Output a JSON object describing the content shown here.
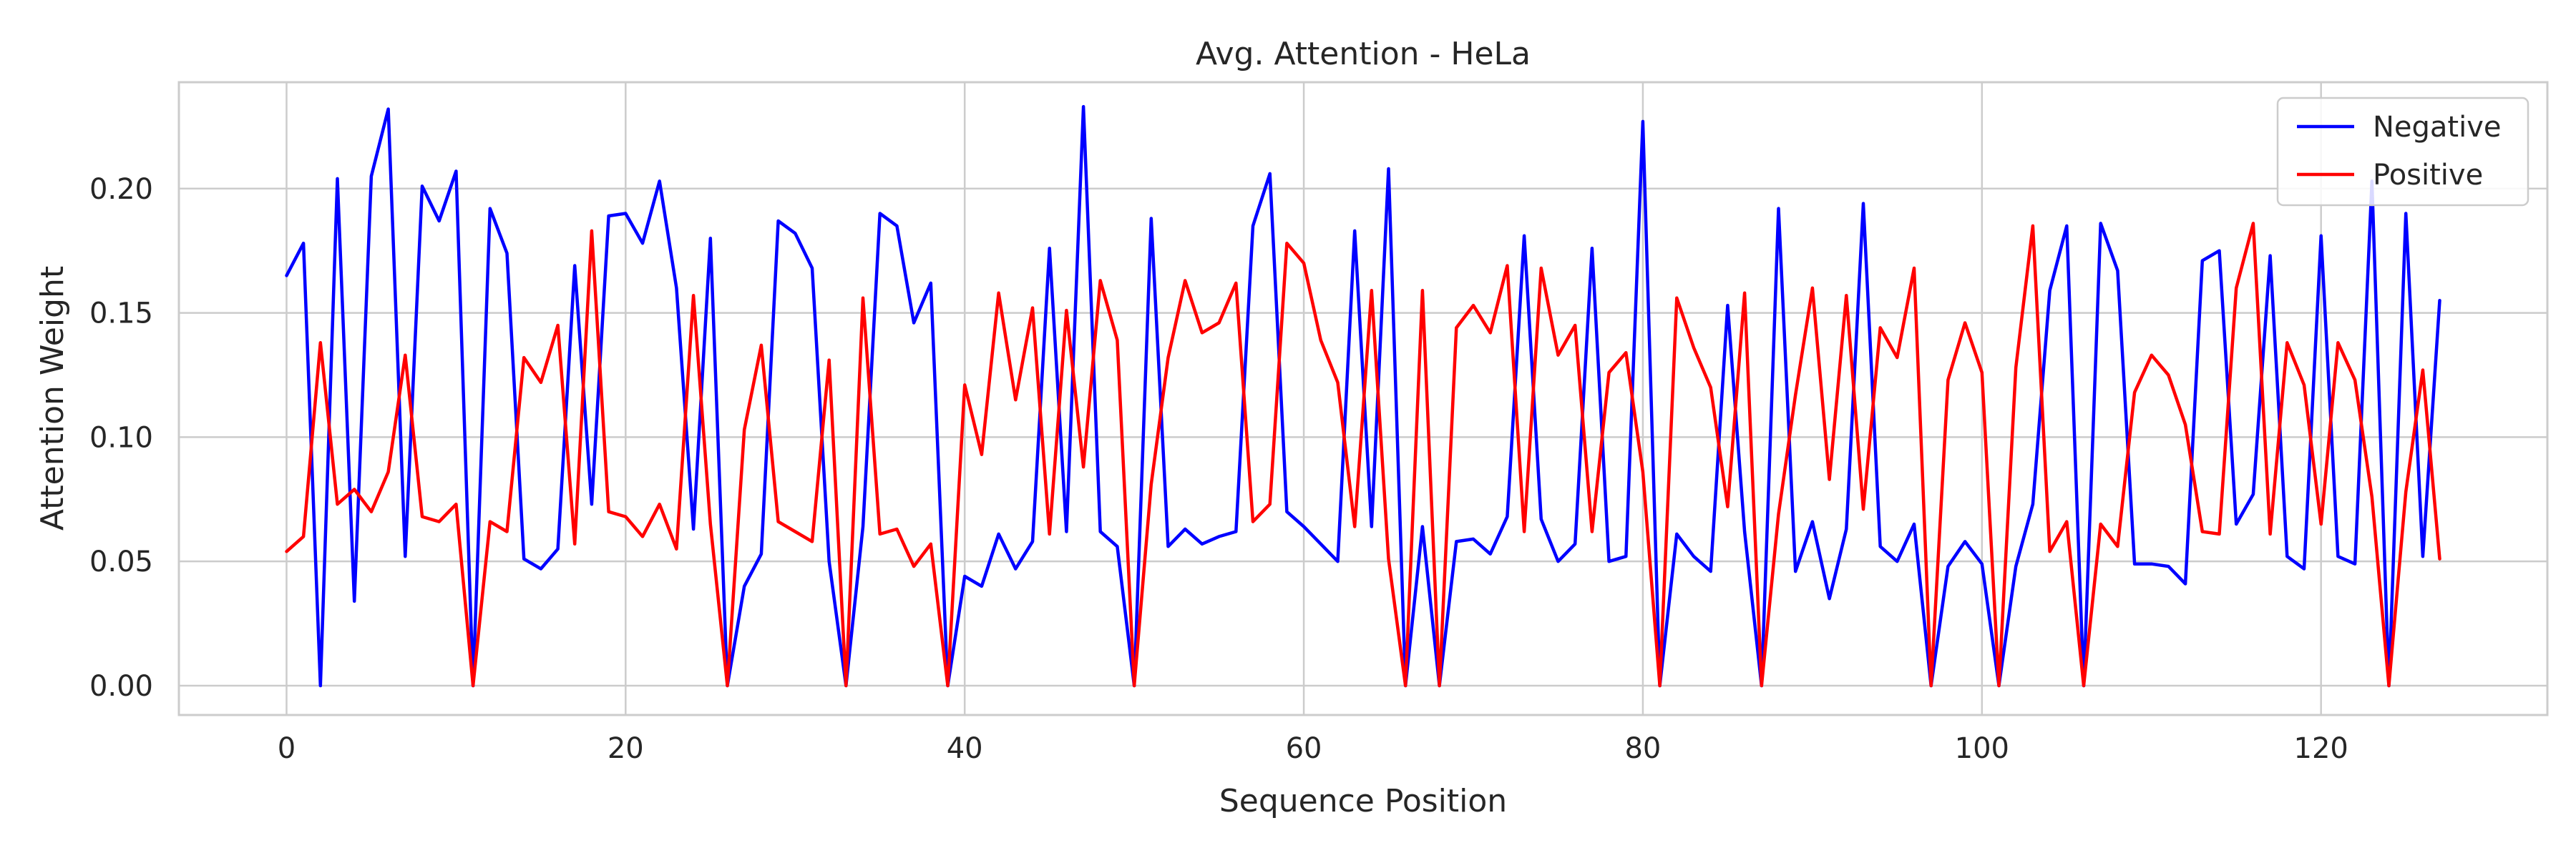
{
  "chart_data": {
    "type": "line",
    "title": "Avg. Attention - HeLa",
    "xlabel": "Sequence Position",
    "ylabel": "Attention Weight",
    "xlim": [
      -6.35,
      133.35
    ],
    "ylim": [
      -0.0118,
      0.2428
    ],
    "xticks": [
      0,
      20,
      40,
      60,
      80,
      100,
      120
    ],
    "xtick_labels": [
      "0",
      "20",
      "40",
      "60",
      "80",
      "100",
      "120"
    ],
    "yticks": [
      0.0,
      0.05,
      0.1,
      0.15,
      0.2
    ],
    "ytick_labels": [
      "0.00",
      "0.05",
      "0.10",
      "0.15",
      "0.20"
    ],
    "grid": true,
    "legend_position": "top-right",
    "x": [
      0,
      1,
      2,
      3,
      4,
      5,
      6,
      7,
      8,
      9,
      10,
      11,
      12,
      13,
      14,
      15,
      16,
      17,
      18,
      19,
      20,
      21,
      22,
      23,
      24,
      25,
      26,
      27,
      28,
      29,
      30,
      31,
      32,
      33,
      34,
      35,
      36,
      37,
      38,
      39,
      40,
      41,
      42,
      43,
      44,
      45,
      46,
      47,
      48,
      49,
      50,
      51,
      52,
      53,
      54,
      55,
      56,
      57,
      58,
      59,
      60,
      61,
      62,
      63,
      64,
      65,
      66,
      67,
      68,
      69,
      70,
      71,
      72,
      73,
      74,
      75,
      76,
      77,
      78,
      79,
      80,
      81,
      82,
      83,
      84,
      85,
      86,
      87,
      88,
      89,
      90,
      91,
      92,
      93,
      94,
      95,
      96,
      97,
      98,
      99,
      100,
      101,
      102,
      103,
      104,
      105,
      106,
      107,
      108,
      109,
      110,
      111,
      112,
      113,
      114,
      115,
      116,
      117,
      118,
      119,
      120,
      121,
      122,
      123,
      124,
      125,
      126,
      127
    ],
    "series": [
      {
        "name": "Negative",
        "color": "#0000ff",
        "values": [
          0.165,
          0.178,
          0.0,
          0.204,
          0.034,
          0.205,
          0.232,
          0.052,
          0.201,
          0.187,
          0.207,
          0.0,
          0.192,
          0.174,
          0.051,
          0.047,
          0.055,
          0.169,
          0.073,
          0.189,
          0.19,
          0.178,
          0.203,
          0.16,
          0.063,
          0.18,
          0.0,
          0.04,
          0.053,
          0.187,
          0.182,
          0.168,
          0.05,
          0.0,
          0.064,
          0.19,
          0.185,
          0.146,
          0.162,
          0.0,
          0.044,
          0.04,
          0.061,
          0.047,
          0.058,
          0.176,
          0.062,
          0.233,
          0.062,
          0.056,
          0.0,
          0.188,
          0.056,
          0.063,
          0.057,
          0.06,
          0.062,
          0.185,
          0.206,
          0.07,
          0.064,
          0.057,
          0.05,
          0.183,
          0.064,
          0.208,
          0.0,
          0.064,
          0.0,
          0.058,
          0.059,
          0.053,
          0.068,
          0.181,
          0.067,
          0.05,
          0.057,
          0.176,
          0.05,
          0.052,
          0.227,
          0.0,
          0.061,
          0.052,
          0.046,
          0.153,
          0.062,
          0.0,
          0.192,
          0.046,
          0.066,
          0.035,
          0.063,
          0.194,
          0.056,
          0.05,
          0.065,
          0.0,
          0.048,
          0.058,
          0.049,
          0.0,
          0.048,
          0.073,
          0.159,
          0.185,
          0.0,
          0.186,
          0.167,
          0.049,
          0.049,
          0.048,
          0.041,
          0.171,
          0.175,
          0.065,
          0.077,
          0.173,
          0.052,
          0.047,
          0.181,
          0.052,
          0.049,
          0.203,
          0.0,
          0.19,
          0.052,
          0.155
        ]
      },
      {
        "name": "Positive",
        "color": "#ff0000",
        "values": [
          0.054,
          0.06,
          0.138,
          0.073,
          0.079,
          0.07,
          0.086,
          0.133,
          0.068,
          0.066,
          0.073,
          0.0,
          0.066,
          0.062,
          0.132,
          0.122,
          0.145,
          0.057,
          0.183,
          0.07,
          0.068,
          0.06,
          0.073,
          0.055,
          0.157,
          0.065,
          0.0,
          0.103,
          0.137,
          0.066,
          0.062,
          0.058,
          0.131,
          0.0,
          0.156,
          0.061,
          0.063,
          0.048,
          0.057,
          0.0,
          0.121,
          0.093,
          0.158,
          0.115,
          0.152,
          0.061,
          0.151,
          0.088,
          0.163,
          0.139,
          0.0,
          0.081,
          0.132,
          0.163,
          0.142,
          0.146,
          0.162,
          0.066,
          0.073,
          0.178,
          0.17,
          0.139,
          0.122,
          0.064,
          0.159,
          0.051,
          0.0,
          0.159,
          0.0,
          0.144,
          0.153,
          0.142,
          0.169,
          0.062,
          0.168,
          0.133,
          0.145,
          0.062,
          0.126,
          0.134,
          0.086,
          0.0,
          0.156,
          0.136,
          0.12,
          0.072,
          0.158,
          0.0,
          0.069,
          0.117,
          0.16,
          0.083,
          0.157,
          0.071,
          0.144,
          0.132,
          0.168,
          0.0,
          0.123,
          0.146,
          0.126,
          0.0,
          0.128,
          0.185,
          0.054,
          0.066,
          0.0,
          0.065,
          0.056,
          0.118,
          0.133,
          0.125,
          0.105,
          0.062,
          0.061,
          0.16,
          0.186,
          0.061,
          0.138,
          0.121,
          0.065,
          0.138,
          0.123,
          0.076,
          0.0,
          0.078,
          0.127,
          0.051
        ]
      }
    ]
  }
}
